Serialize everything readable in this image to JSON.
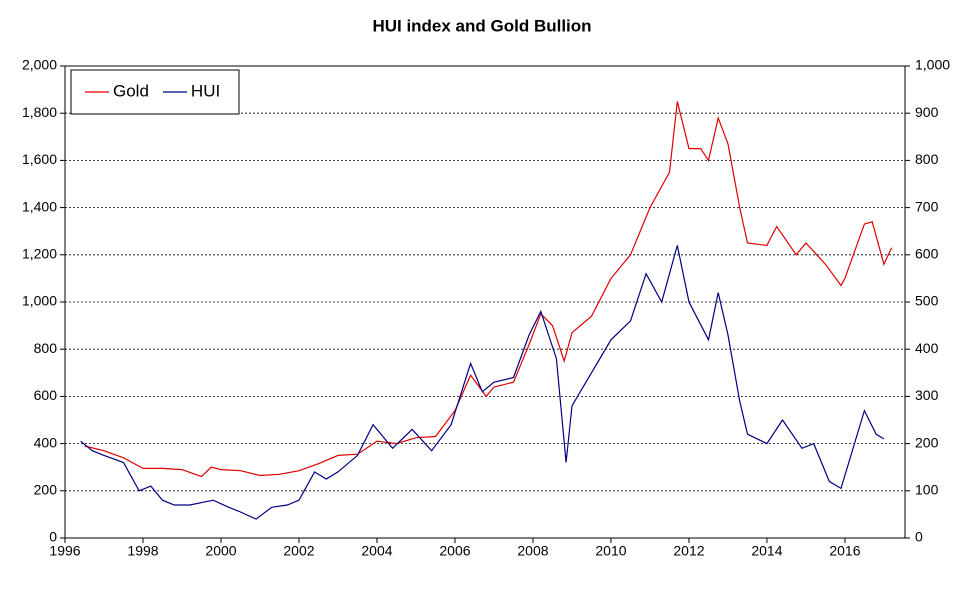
{
  "chart_data": {
    "type": "line",
    "title": "HUI index and Gold Bullion",
    "xlim": [
      1996,
      2017.54
    ],
    "xticks": [
      1996,
      1998,
      2000,
      2002,
      2004,
      2006,
      2008,
      2010,
      2012,
      2014,
      2016
    ],
    "ylim": [
      0,
      2000
    ],
    "yticks": [
      0,
      200,
      400,
      600,
      800,
      {
        "value": 1000,
        "label": "1,000"
      },
      {
        "value": 1200,
        "label": "1,200"
      },
      {
        "value": 1400,
        "label": "1,400"
      },
      {
        "value": 1600,
        "label": "1,600"
      },
      {
        "value": 1800,
        "label": "1,800"
      },
      {
        "value": 2000,
        "label": "2,000"
      }
    ],
    "y2lim": [
      0,
      1000
    ],
    "y2ticks": [
      0,
      100,
      200,
      300,
      400,
      500,
      600,
      700,
      800,
      900,
      {
        "value": 1000,
        "label": "1,000"
      }
    ],
    "grid": true,
    "legend": "top-left",
    "series": [
      {
        "name": "Gold",
        "color": "#e00000",
        "x": [
          1996.5,
          1997.0,
          1997.5,
          1998.0,
          1998.5,
          1999.0,
          1999.5,
          1999.75,
          2000.0,
          2000.5,
          2001.0,
          2001.5,
          2002.0,
          2002.5,
          2003.0,
          2003.5,
          2004.0,
          2004.5,
          2005.0,
          2005.5,
          2006.0,
          2006.4,
          2006.8,
          2007.0,
          2007.5,
          2007.9,
          2008.2,
          2008.5,
          2008.8,
          2009.0,
          2009.5,
          2010.0,
          2010.5,
          2011.0,
          2011.5,
          2011.7,
          2012.0,
          2012.3,
          2012.5,
          2012.75,
          2013.0,
          2013.3,
          2013.5,
          2014.0,
          2014.25,
          2014.75,
          2015.0,
          2015.5,
          2015.9,
          2016.0,
          2016.5,
          2016.7,
          2017.0,
          2017.2
        ],
        "values": [
          390,
          370,
          340,
          295,
          295,
          290,
          260,
          300,
          290,
          285,
          265,
          270,
          285,
          315,
          350,
          355,
          410,
          400,
          425,
          430,
          540,
          690,
          600,
          640,
          660,
          820,
          950,
          900,
          750,
          870,
          940,
          1100,
          1200,
          1400,
          1550,
          1850,
          1650,
          1650,
          1600,
          1780,
          1670,
          1400,
          1250,
          1240,
          1320,
          1200,
          1250,
          1160,
          1070,
          1100,
          1330,
          1340,
          1160,
          1230
        ]
      },
      {
        "name": "HUI",
        "color": "#000080",
        "axis": "y2",
        "x": [
          1996.4,
          1996.7,
          1997.0,
          1997.5,
          1997.9,
          1998.2,
          1998.5,
          1998.8,
          1999.2,
          1999.8,
          2000.2,
          2000.5,
          2000.9,
          2001.3,
          2001.7,
          2002.0,
          2002.4,
          2002.7,
          2003.0,
          2003.5,
          2003.9,
          2004.4,
          2004.9,
          2005.4,
          2005.9,
          2006.4,
          2006.7,
          2007.0,
          2007.5,
          2007.9,
          2008.2,
          2008.6,
          2008.85,
          2009.0,
          2009.5,
          2010.0,
          2010.5,
          2010.9,
          2011.3,
          2011.7,
          2012.0,
          2012.5,
          2012.75,
          2013.0,
          2013.3,
          2013.5,
          2014.0,
          2014.4,
          2014.9,
          2015.2,
          2015.6,
          2015.9,
          2016.5,
          2016.8,
          2017.0
        ],
        "values": [
          205,
          185,
          175,
          160,
          100,
          110,
          80,
          70,
          70,
          80,
          65,
          55,
          40,
          65,
          70,
          80,
          140,
          125,
          140,
          175,
          240,
          190,
          230,
          185,
          240,
          370,
          310,
          330,
          340,
          430,
          480,
          380,
          160,
          280,
          350,
          420,
          460,
          560,
          500,
          620,
          500,
          420,
          520,
          430,
          290,
          220,
          200,
          250,
          190,
          200,
          120,
          105,
          270,
          220,
          210
        ]
      }
    ]
  }
}
